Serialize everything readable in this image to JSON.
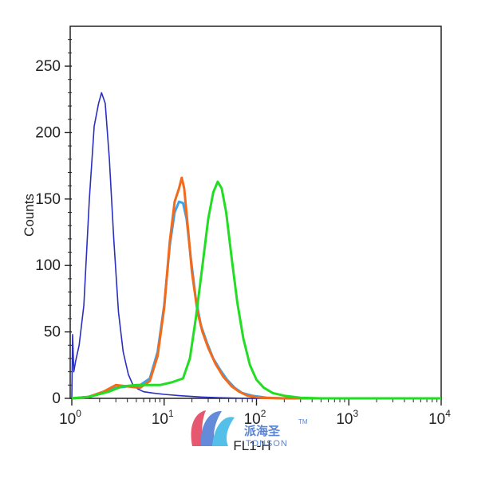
{
  "chart_data": {
    "type": "line",
    "title": "",
    "xlabel": "FL1-H",
    "ylabel": "Counts",
    "x_scale": "log",
    "xlim": [
      1,
      10000
    ],
    "ylim": [
      0,
      280
    ],
    "grid": false,
    "legend": "none",
    "x_ticks": [
      {
        "base": "10",
        "exp": "0",
        "value": 1
      },
      {
        "base": "10",
        "exp": "1",
        "value": 10
      },
      {
        "base": "10",
        "exp": "2",
        "value": 100
      },
      {
        "base": "10",
        "exp": "3",
        "value": 1000
      },
      {
        "base": "10",
        "exp": "4",
        "value": 10000
      }
    ],
    "y_ticks": [
      {
        "label": "0",
        "value": 0
      },
      {
        "label": "50",
        "value": 50
      },
      {
        "label": "100",
        "value": 100
      },
      {
        "label": "150",
        "value": 150
      },
      {
        "label": "200",
        "value": 200
      },
      {
        "label": "250",
        "value": 250
      }
    ],
    "series": [
      {
        "color": "#2a2fbf",
        "points": [
          [
            1.0,
            0
          ],
          [
            1.02,
            48
          ],
          [
            1.05,
            20
          ],
          [
            1.1,
            28
          ],
          [
            1.2,
            40
          ],
          [
            1.35,
            70
          ],
          [
            1.55,
            150
          ],
          [
            1.75,
            205
          ],
          [
            1.95,
            222
          ],
          [
            2.1,
            230
          ],
          [
            2.3,
            222
          ],
          [
            2.55,
            180
          ],
          [
            2.85,
            120
          ],
          [
            3.2,
            65
          ],
          [
            3.6,
            35
          ],
          [
            4.1,
            18
          ],
          [
            4.6,
            10
          ],
          [
            5.2,
            7
          ],
          [
            6.0,
            5
          ],
          [
            7.5,
            4
          ],
          [
            10,
            3
          ],
          [
            15,
            2
          ],
          [
            25,
            1
          ],
          [
            40,
            0.5
          ],
          [
            80,
            0
          ],
          [
            10000,
            0
          ]
        ]
      },
      {
        "color": "#3fa1e6",
        "points": [
          [
            1.0,
            0
          ],
          [
            1.5,
            1
          ],
          [
            2.2,
            4
          ],
          [
            3,
            8
          ],
          [
            4,
            9
          ],
          [
            5.5,
            10
          ],
          [
            7,
            15
          ],
          [
            8.5,
            35
          ],
          [
            10,
            70
          ],
          [
            11.5,
            115
          ],
          [
            13,
            140
          ],
          [
            14.5,
            148
          ],
          [
            16,
            147
          ],
          [
            17.5,
            135
          ],
          [
            19.5,
            105
          ],
          [
            22,
            75
          ],
          [
            25,
            55
          ],
          [
            29,
            42
          ],
          [
            34,
            30
          ],
          [
            40,
            22
          ],
          [
            48,
            14
          ],
          [
            58,
            8
          ],
          [
            70,
            4
          ],
          [
            90,
            2
          ],
          [
            130,
            0.5
          ],
          [
            200,
            0
          ],
          [
            10000,
            0
          ]
        ]
      },
      {
        "color": "#f26a1b",
        "points": [
          [
            1.0,
            0
          ],
          [
            1.5,
            1
          ],
          [
            2.2,
            5
          ],
          [
            3,
            10
          ],
          [
            4,
            9
          ],
          [
            5.5,
            8
          ],
          [
            7,
            13
          ],
          [
            8.5,
            32
          ],
          [
            10,
            68
          ],
          [
            11.5,
            118
          ],
          [
            13,
            148
          ],
          [
            14.5,
            158
          ],
          [
            15.5,
            166
          ],
          [
            16.5,
            158
          ],
          [
            18,
            130
          ],
          [
            20,
            95
          ],
          [
            23,
            65
          ],
          [
            26,
            50
          ],
          [
            30,
            38
          ],
          [
            36,
            26
          ],
          [
            44,
            16
          ],
          [
            54,
            9
          ],
          [
            65,
            5
          ],
          [
            80,
            2
          ],
          [
            110,
            0.5
          ],
          [
            200,
            0
          ],
          [
            10000,
            0
          ]
        ]
      },
      {
        "color": "#22dd22",
        "points": [
          [
            1.0,
            0
          ],
          [
            1.5,
            1
          ],
          [
            2.5,
            5
          ],
          [
            3.5,
            9
          ],
          [
            5,
            10
          ],
          [
            7,
            10
          ],
          [
            9,
            10
          ],
          [
            12,
            12
          ],
          [
            16,
            15
          ],
          [
            19,
            30
          ],
          [
            22,
            60
          ],
          [
            26,
            100
          ],
          [
            30,
            135
          ],
          [
            34,
            155
          ],
          [
            38,
            163
          ],
          [
            42,
            158
          ],
          [
            47,
            140
          ],
          [
            54,
            105
          ],
          [
            62,
            72
          ],
          [
            72,
            45
          ],
          [
            85,
            25
          ],
          [
            100,
            14
          ],
          [
            120,
            8
          ],
          [
            150,
            4
          ],
          [
            200,
            2
          ],
          [
            300,
            0.5
          ],
          [
            500,
            0
          ],
          [
            10000,
            0
          ]
        ]
      }
    ]
  },
  "watermark": {
    "text": "派海圣",
    "sub": "TONSON",
    "tm": "TM",
    "colors": [
      "#e23b57",
      "#4a76d4",
      "#37b6e6"
    ]
  }
}
